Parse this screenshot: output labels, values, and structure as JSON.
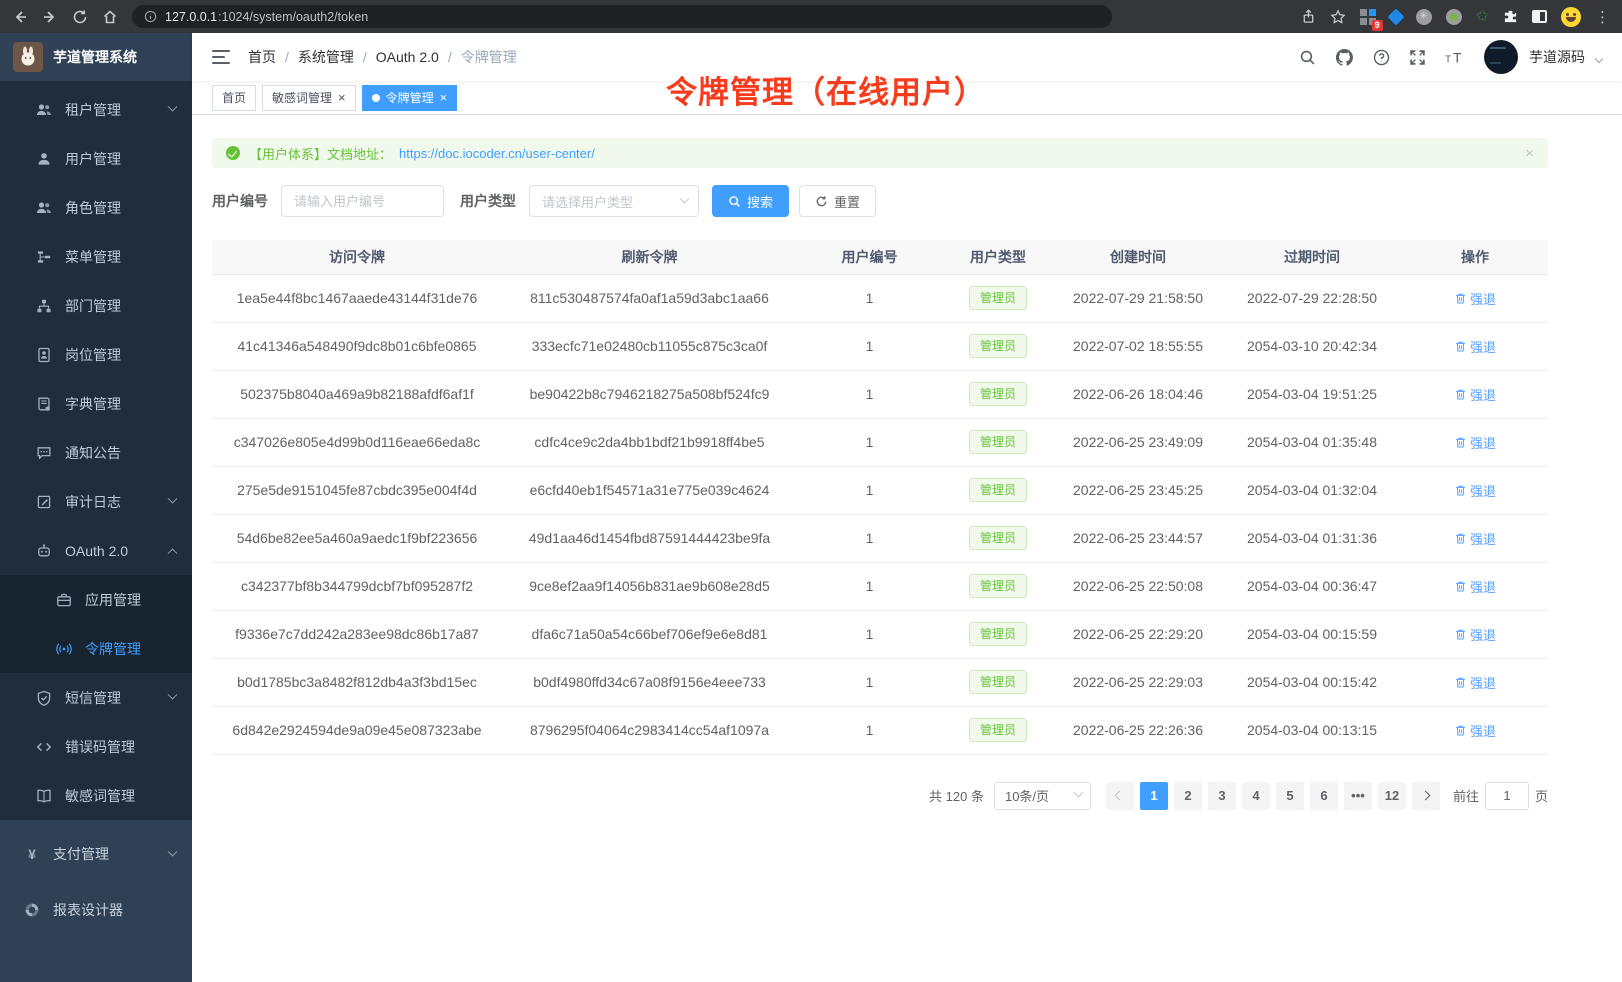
{
  "browser": {
    "url_host": "127.0.0.1",
    "url_rest": ":1024/system/oauth2/token",
    "extension_badge": "9"
  },
  "theme": {
    "accent": "#409eff",
    "success": "#67c23a",
    "annotation_red": "#f73b1d"
  },
  "sidebar": {
    "app_title": "芋道管理系统",
    "menu": [
      {
        "id": "tenant",
        "label": "租户管理",
        "icon": "users-icon",
        "arrow": "down"
      },
      {
        "id": "user",
        "label": "用户管理",
        "icon": "user-icon"
      },
      {
        "id": "role",
        "label": "角色管理",
        "icon": "users-icon"
      },
      {
        "id": "menu",
        "label": "菜单管理",
        "icon": "tree-icon"
      },
      {
        "id": "dept",
        "label": "部门管理",
        "icon": "org-icon"
      },
      {
        "id": "post",
        "label": "岗位管理",
        "icon": "badge-icon"
      },
      {
        "id": "dict",
        "label": "字典管理",
        "icon": "book-icon"
      },
      {
        "id": "notice",
        "label": "通知公告",
        "icon": "message-icon"
      },
      {
        "id": "audit-log",
        "label": "审计日志",
        "icon": "log-icon",
        "arrow": "down"
      },
      {
        "id": "oauth2",
        "label": "OAuth 2.0",
        "icon": "robot-icon",
        "arrow": "up"
      },
      {
        "id": "oauth2-app",
        "label": "应用管理",
        "icon": "briefcase-icon",
        "nested": true
      },
      {
        "id": "oauth2-token",
        "label": "令牌管理",
        "icon": "signal-icon",
        "nested": true,
        "active": true
      },
      {
        "id": "sms",
        "label": "短信管理",
        "icon": "shield-icon",
        "arrow": "down"
      },
      {
        "id": "error-code",
        "label": "错误码管理",
        "icon": "code-icon"
      },
      {
        "id": "sensitive-word",
        "label": "敏感词管理",
        "icon": "openbook-icon"
      }
    ],
    "bottom_menu": [
      {
        "id": "pay",
        "label": "支付管理",
        "icon": "yen-icon",
        "arrow": "down"
      },
      {
        "id": "report-designer",
        "label": "报表设计器",
        "icon": "report-icon"
      }
    ]
  },
  "header": {
    "breadcrumb": [
      {
        "id": "home",
        "label": "首页"
      },
      {
        "id": "system",
        "label": "系统管理"
      },
      {
        "id": "oauth2",
        "label": "OAuth 2.0"
      },
      {
        "id": "token",
        "label": "令牌管理"
      }
    ],
    "username": "芋道源码"
  },
  "tabs": [
    {
      "id": "home",
      "label": "首页"
    },
    {
      "id": "sensitive-word",
      "label": "敏感词管理",
      "closable": true
    },
    {
      "id": "token",
      "label": "令牌管理",
      "closable": true,
      "active": true
    }
  ],
  "annotation": {
    "text": "令牌管理（在线用户）",
    "color": "#f73b1d"
  },
  "alert": {
    "text": "【用户体系】文档地址：",
    "link": "https://doc.iocoder.cn/user-center/"
  },
  "filters": {
    "user_id": {
      "label": "用户编号",
      "placeholder": "请输入用户编号"
    },
    "user_type": {
      "label": "用户类型",
      "placeholder": "请选择用户类型"
    },
    "search_label": "搜索",
    "reset_label": "重置"
  },
  "table": {
    "headers": [
      {
        "id": "access-token",
        "label": "访问令牌"
      },
      {
        "id": "refresh-token",
        "label": "刷新令牌"
      },
      {
        "id": "user-id",
        "label": "用户编号"
      },
      {
        "id": "user-type",
        "label": "用户类型"
      },
      {
        "id": "create-time",
        "label": "创建时间"
      },
      {
        "id": "expire-time",
        "label": "过期时间"
      },
      {
        "id": "actions",
        "label": "操作"
      }
    ],
    "rows": [
      {
        "access_token": "1ea5e44f8bc1467aaede43144f31de76",
        "refresh_token": "811c530487574fa0af1a59d3abc1aa66",
        "user_id": "1",
        "user_type": "管理员",
        "create_time": "2022-07-29 21:58:50",
        "expire_time": "2022-07-29 22:28:50",
        "action": "强退"
      },
      {
        "access_token": "41c41346a548490f9dc8b01c6bfe0865",
        "refresh_token": "333ecfc71e02480cb11055c875c3ca0f",
        "user_id": "1",
        "user_type": "管理员",
        "create_time": "2022-07-02 18:55:55",
        "expire_time": "2054-03-10 20:42:34",
        "action": "强退"
      },
      {
        "access_token": "502375b8040a469a9b82188afdf6af1f",
        "refresh_token": "be90422b8c7946218275a508bf524fc9",
        "user_id": "1",
        "user_type": "管理员",
        "create_time": "2022-06-26 18:04:46",
        "expire_time": "2054-03-04 19:51:25",
        "action": "强退"
      },
      {
        "access_token": "c347026e805e4d99b0d116eae66eda8c",
        "refresh_token": "cdfc4ce9c2da4bb1bdf21b9918ff4be5",
        "user_id": "1",
        "user_type": "管理员",
        "create_time": "2022-06-25 23:49:09",
        "expire_time": "2054-03-04 01:35:48",
        "action": "强退"
      },
      {
        "access_token": "275e5de9151045fe87cbdc395e004f4d",
        "refresh_token": "e6cfd40eb1f54571a31e775e039c4624",
        "user_id": "1",
        "user_type": "管理员",
        "create_time": "2022-06-25 23:45:25",
        "expire_time": "2054-03-04 01:32:04",
        "action": "强退"
      },
      {
        "access_token": "54d6be82ee5a460a9aedc1f9bf223656",
        "refresh_token": "49d1aa46d1454fbd87591444423be9fa",
        "user_id": "1",
        "user_type": "管理员",
        "create_time": "2022-06-25 23:44:57",
        "expire_time": "2054-03-04 01:31:36",
        "action": "强退"
      },
      {
        "access_token": "c342377bf8b344799dcbf7bf095287f2",
        "refresh_token": "9ce8ef2aa9f14056b831ae9b608e28d5",
        "user_id": "1",
        "user_type": "管理员",
        "create_time": "2022-06-25 22:50:08",
        "expire_time": "2054-03-04 00:36:47",
        "action": "强退"
      },
      {
        "access_token": "f9336e7c7dd242a283ee98dc86b17a87",
        "refresh_token": "dfa6c71a50a54c66bef706ef9e6e8d81",
        "user_id": "1",
        "user_type": "管理员",
        "create_time": "2022-06-25 22:29:20",
        "expire_time": "2054-03-04 00:15:59",
        "action": "强退"
      },
      {
        "access_token": "b0d1785bc3a8482f812db4a3f3bd15ec",
        "refresh_token": "b0df4980ffd34c67a08f9156e4eee733",
        "user_id": "1",
        "user_type": "管理员",
        "create_time": "2022-06-25 22:29:03",
        "expire_time": "2054-03-04 00:15:42",
        "action": "强退"
      },
      {
        "access_token": "6d842e2924594de9a09e45e087323abe",
        "refresh_token": "8796295f04064c2983414cc54af1097a",
        "user_id": "1",
        "user_type": "管理员",
        "create_time": "2022-06-25 22:26:36",
        "expire_time": "2054-03-04 00:13:15",
        "action": "强退"
      }
    ]
  },
  "pagination": {
    "total": "共 120 条",
    "page_size": "10条/页",
    "pages": [
      {
        "id": "1",
        "label": "1",
        "active": true
      },
      {
        "id": "2",
        "label": "2"
      },
      {
        "id": "3",
        "label": "3"
      },
      {
        "id": "4",
        "label": "4"
      },
      {
        "id": "5",
        "label": "5"
      },
      {
        "id": "6",
        "label": "6"
      },
      {
        "id": "more",
        "label": "•••",
        "ellipsis": true
      },
      {
        "id": "12",
        "label": "12"
      }
    ],
    "goto_label": "前往",
    "goto_value": "1",
    "unit": "页"
  }
}
